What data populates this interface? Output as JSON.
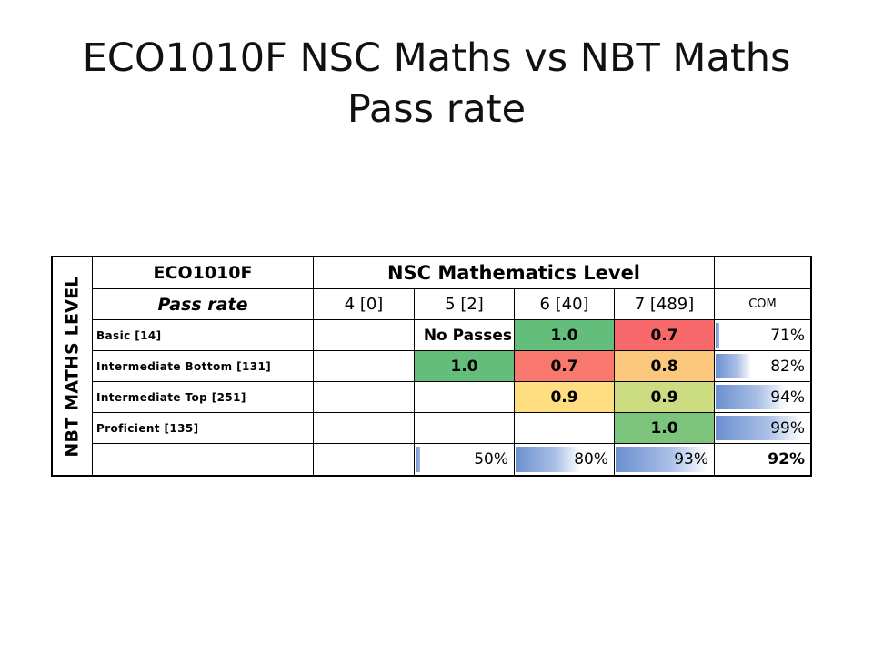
{
  "title": {
    "line1": "ECO1010F NSC Maths vs NBT Maths",
    "line2": "Pass rate"
  },
  "table": {
    "side_label": "NBT MATHS LEVEL",
    "course": "ECO1010F",
    "nsc_header": "NSC Mathematics Level",
    "pass_rate_label": "Pass rate",
    "columns": [
      "4 [0]",
      "5 [2]",
      "6 [40]",
      "7 [489]"
    ],
    "com_label": "COM",
    "rows": [
      {
        "label": "Basic [14]",
        "cells": [
          "",
          "No Passes",
          "1.0",
          "0.7"
        ],
        "com": "71%",
        "com_value": 71
      },
      {
        "label": "Intermediate Bottom [131]",
        "cells": [
          "",
          "1.0",
          "0.7",
          "0.8"
        ],
        "com": "82%",
        "com_value": 82
      },
      {
        "label": "Intermediate Top [251]",
        "cells": [
          "",
          "",
          "0.9",
          "0.9"
        ],
        "com": "94%",
        "com_value": 94
      },
      {
        "label": "Proficient [135]",
        "cells": [
          "",
          "",
          "",
          "1.0"
        ],
        "com": "99%",
        "com_value": 99
      }
    ],
    "totals": {
      "cells": [
        "",
        "50%",
        "80%",
        "93%"
      ],
      "values": [
        null,
        50,
        80,
        93
      ],
      "overall": "92%"
    },
    "cell_colors": [
      [
        "#ffffff",
        "#ffffff",
        "#63be7b",
        "#f8696b"
      ],
      [
        "#ffffff",
        "#63be7b",
        "#f8786e",
        "#fbc77d"
      ],
      [
        "#ffffff",
        "#ffffff",
        "#fede81",
        "#cbdc81"
      ],
      [
        "#ffffff",
        "#ffffff",
        "#ffffff",
        "#7cc47c"
      ]
    ]
  }
}
